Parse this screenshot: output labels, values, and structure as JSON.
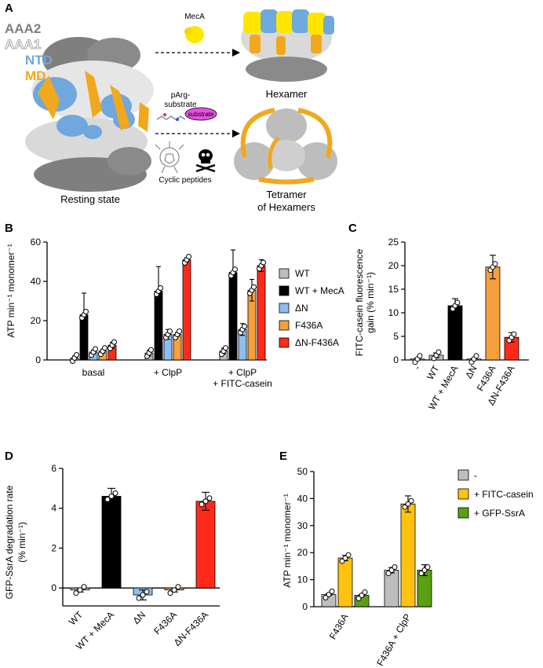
{
  "panels": {
    "a": "A",
    "b": "B",
    "c": "C",
    "d": "D",
    "e": "E"
  },
  "panel_a": {
    "legend": [
      "AAA2",
      "AAA1",
      "NTD",
      "MD"
    ],
    "resting_label": "Resting state",
    "meca_label": "MecA",
    "hexamer_label": "Hexamer",
    "parg_label": "pArg-\nsubstrate",
    "substrate_tag": "substrate",
    "cyclic_label": "Cyclic peptides",
    "tetramer_label": "Tetramer\nof Hexamers",
    "colors": {
      "aaa2": "#7f7f7f",
      "aaa1": "#c8c8c8",
      "ntd": "#6fa8dc",
      "md": "#f2a81d",
      "meca": "#ffe600",
      "substrate": "#e64fe6"
    }
  },
  "chart_data": [
    {
      "id": "B",
      "type": "bar",
      "ylabel": "ATP min⁻¹ monomer⁻¹",
      "ylim": [
        0,
        60
      ],
      "yticks": [
        0,
        20,
        40,
        60
      ],
      "groups": [
        "basal",
        "+ ClpP",
        "+ ClpP\n+ FITC-casein"
      ],
      "legend": [
        {
          "name": "WT",
          "color": "#bdbdbd"
        },
        {
          "name": "WT +  MecA",
          "color": "#000000"
        },
        {
          "name": "ΔN",
          "color": "#8ebef0"
        },
        {
          "name": "F436A",
          "color": "#f5a03c"
        },
        {
          "name": "ΔN-F436A",
          "color": "#ff2a1a"
        }
      ],
      "values": [
        [
          1,
          23,
          4,
          4.5,
          7.5
        ],
        [
          3.5,
          35,
          13,
          13,
          51
        ],
        [
          4.5,
          44.5,
          15.5,
          35.5,
          48
        ]
      ],
      "errors": [
        [
          1,
          11,
          1,
          1,
          1.5
        ],
        [
          1.5,
          12.5,
          2.5,
          1,
          1
        ],
        [
          1.5,
          11.5,
          3,
          5.5,
          3
        ]
      ]
    },
    {
      "id": "C",
      "type": "bar",
      "ylabel": "FITC-casein fluorescence\ngain (% min⁻¹)",
      "ylim": [
        0,
        25
      ],
      "yticks": [
        0,
        5,
        10,
        15,
        20,
        25
      ],
      "categories": [
        "-",
        "WT",
        "WT + MecA",
        "ΔN",
        "F436A",
        "ΔN-F436A"
      ],
      "colors": [
        "#bdbdbd",
        "#bdbdbd",
        "#000000",
        "#8ebef0",
        "#f5a03c",
        "#ff2a1a"
      ],
      "values": [
        0.2,
        1,
        11.5,
        0.2,
        19.7,
        4.8
      ],
      "errors": [
        0.2,
        0.5,
        1.5,
        0.1,
        2.5,
        1
      ]
    },
    {
      "id": "D",
      "type": "bar",
      "ylabel": "GFP-SsrA degradation rate\n(% min⁻¹)",
      "ylim": [
        -0.9,
        6
      ],
      "yticks": [
        0,
        2,
        4,
        6
      ],
      "categories": [
        "WT",
        "WT + MecA",
        "ΔN",
        "F436A",
        "ΔN-F436A"
      ],
      "colors": [
        "#bdbdbd",
        "#000000",
        "#8ebef0",
        "#f5a03c",
        "#ff2a1a"
      ],
      "values": [
        -0.1,
        4.6,
        -0.35,
        -0.1,
        4.35
      ],
      "errors": [
        0.1,
        0.4,
        0.25,
        0.1,
        0.45
      ]
    },
    {
      "id": "E",
      "type": "bar",
      "ylabel": "ATP min⁻¹ monomer⁻¹",
      "ylim": [
        0,
        50
      ],
      "yticks": [
        0,
        10,
        20,
        30,
        40,
        50
      ],
      "groups": [
        "F436A",
        "F436A + ClpP"
      ],
      "legend": [
        {
          "name": "-",
          "color": "#bdbdbd"
        },
        {
          "name": "+ FITC-casein",
          "color": "#ffc20e"
        },
        {
          "name": "+ GFP-SsrA",
          "color": "#5aa012"
        }
      ],
      "values": [
        [
          4.5,
          18,
          4.2
        ],
        [
          13.5,
          38,
          13.5
        ]
      ],
      "errors": [
        [
          0.3,
          1,
          0.3
        ],
        [
          1,
          3,
          2
        ]
      ]
    }
  ]
}
